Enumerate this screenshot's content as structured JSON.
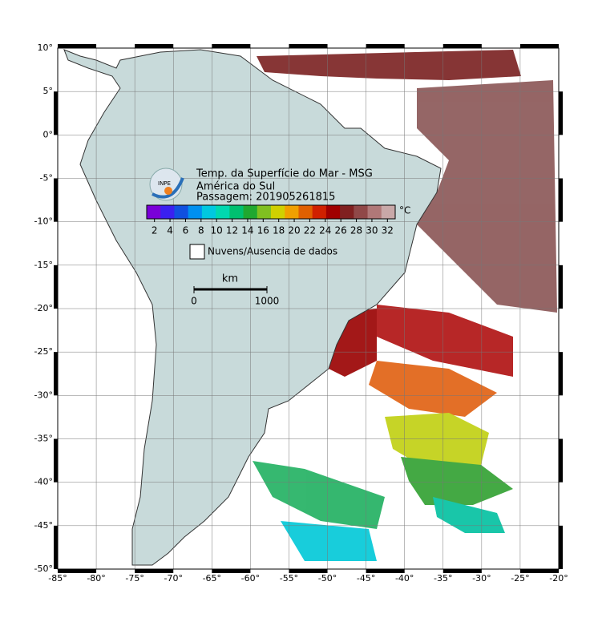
{
  "map": {
    "title_lines": [
      "Temp. da Superfície do Mar - MSG",
      "América do Sul",
      "Passagem: 201905261815"
    ],
    "logo_text": "INPE",
    "colorbar": {
      "unit": "°C",
      "range": [
        1,
        33
      ],
      "ticks": [
        2,
        4,
        6,
        8,
        10,
        12,
        14,
        16,
        18,
        20,
        22,
        24,
        26,
        28,
        30,
        32
      ],
      "colors": [
        "#7a00d8",
        "#3a20f0",
        "#1050e0",
        "#0090f0",
        "#00c8e0",
        "#00d8b0",
        "#00c070",
        "#20a830",
        "#80c020",
        "#d0d000",
        "#f0a000",
        "#e06000",
        "#d02000",
        "#a00000",
        "#802020",
        "#904848",
        "#b07878",
        "#c8a8a8"
      ]
    },
    "legend": "Nuvens/Ausencia de dados",
    "scale_bar": {
      "unit": "km",
      "ticks": [
        0,
        1000
      ]
    },
    "xlim": [
      -85,
      -20
    ],
    "ylim": [
      -50,
      10
    ],
    "grid": true,
    "xticks": [
      {
        "value": -85,
        "label": "-85°"
      },
      {
        "value": -80,
        "label": "-80°"
      },
      {
        "value": -75,
        "label": "-75°"
      },
      {
        "value": -70,
        "label": "-70°"
      },
      {
        "value": -65,
        "label": "-65°"
      },
      {
        "value": -60,
        "label": "-60°"
      },
      {
        "value": -55,
        "label": "-55°"
      },
      {
        "value": -50,
        "label": "-50°"
      },
      {
        "value": -45,
        "label": "-45°"
      },
      {
        "value": -40,
        "label": "-40°"
      },
      {
        "value": -35,
        "label": "-35°"
      },
      {
        "value": -30,
        "label": "-30°"
      },
      {
        "value": -25,
        "label": "-25°"
      },
      {
        "value": -20,
        "label": "-20°"
      }
    ],
    "yticks": [
      {
        "value": 10,
        "label": "10°"
      },
      {
        "value": 5,
        "label": "5°"
      },
      {
        "value": 0,
        "label": "0°"
      },
      {
        "value": -5,
        "label": "-5°"
      },
      {
        "value": -10,
        "label": "-10°"
      },
      {
        "value": -15,
        "label": "-15°"
      },
      {
        "value": -20,
        "label": "-20°"
      },
      {
        "value": -25,
        "label": "-25°"
      },
      {
        "value": -30,
        "label": "-30°"
      },
      {
        "value": -35,
        "label": "-35°"
      },
      {
        "value": -40,
        "label": "-40°"
      },
      {
        "value": -45,
        "label": "-45°"
      },
      {
        "value": -50,
        "label": "-50°"
      }
    ]
  }
}
